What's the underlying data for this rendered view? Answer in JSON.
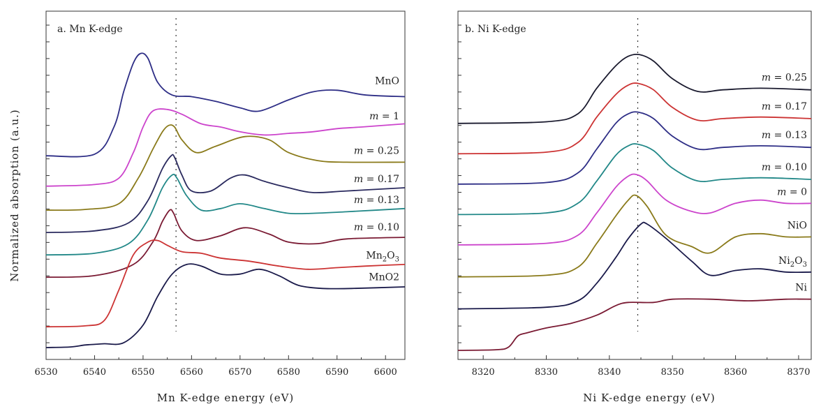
{
  "shared_ylabel": "Normalized absorption (a.u.)",
  "chart_data": [
    {
      "type": "line",
      "title": "a. Mn K-edge",
      "xlabel": "Mn K-edge energy (eV)",
      "ylabel": "Normalized absorption (a.u.)",
      "xlim": [
        6530,
        6604
      ],
      "ylim": [
        0,
        10
      ],
      "xticks": [
        6530,
        6540,
        6550,
        6560,
        6570,
        6580,
        6590,
        6600
      ],
      "xtick_labels": [
        "6530",
        "6540",
        "6550",
        "6560",
        "6570",
        "6580",
        "6590",
        "6600"
      ],
      "reference_line_x": 6556.8,
      "series": [
        {
          "name": "MnO",
          "label": "MnO",
          "color": "#2e2e86",
          "x": [
            6530,
            6540,
            6544,
            6546,
            6548,
            6549.5,
            6551,
            6553,
            6556,
            6560,
            6565,
            6570,
            6574,
            6580,
            6585,
            6590,
            6596,
            6604
          ],
          "y": [
            6.0,
            6.05,
            6.9,
            8.0,
            8.9,
            9.2,
            9.05,
            8.3,
            7.9,
            7.85,
            7.7,
            7.5,
            7.4,
            7.75,
            8.0,
            8.05,
            7.9,
            7.85
          ]
        },
        {
          "name": "m = 1",
          "label": "m = 1",
          "color": "#cc44cc",
          "x": [
            6530,
            6540,
            6545,
            6548,
            6550,
            6552,
            6555,
            6558,
            6562,
            6566,
            6570,
            6575,
            6580,
            6585,
            6590,
            6595,
            6604
          ],
          "y": [
            5.05,
            5.1,
            5.3,
            6.1,
            6.9,
            7.4,
            7.45,
            7.3,
            7.0,
            6.9,
            6.75,
            6.65,
            6.7,
            6.75,
            6.85,
            6.9,
            7.0
          ]
        },
        {
          "name": "m = 0.25",
          "label": "m = 0.25",
          "color": "#8a7a1a",
          "x": [
            6530,
            6538,
            6545,
            6549,
            6552,
            6554,
            6555.3,
            6556.5,
            6558,
            6561,
            6565,
            6571,
            6576,
            6580,
            6586,
            6592,
            6604
          ],
          "y": [
            4.3,
            4.32,
            4.5,
            5.3,
            6.2,
            6.75,
            6.95,
            6.9,
            6.5,
            6.1,
            6.3,
            6.6,
            6.5,
            6.1,
            5.85,
            5.8,
            5.8
          ]
        },
        {
          "name": "m = 0.17",
          "label": "m = 0.17",
          "color": "#2a2a5e",
          "x": [
            6530,
            6540,
            6547,
            6551,
            6554,
            6555.8,
            6556.5,
            6558,
            6560,
            6564,
            6568,
            6571,
            6575,
            6580,
            6585,
            6592,
            6604
          ],
          "y": [
            3.6,
            3.65,
            3.9,
            4.6,
            5.6,
            6.0,
            5.95,
            5.4,
            4.9,
            4.9,
            5.3,
            5.4,
            5.2,
            5.0,
            4.85,
            4.9,
            5.0
          ]
        },
        {
          "name": "m = 0.13",
          "label": "m = 0.13",
          "color": "#228888",
          "x": [
            6530,
            6540,
            6547,
            6551,
            6554,
            6556,
            6557,
            6559,
            6562,
            6566,
            6570,
            6575,
            6580,
            6585,
            6592,
            6604
          ],
          "y": [
            2.9,
            2.95,
            3.25,
            4.0,
            5.0,
            5.4,
            5.3,
            4.75,
            4.3,
            4.35,
            4.5,
            4.35,
            4.2,
            4.2,
            4.25,
            4.35
          ]
        },
        {
          "name": "m = 0.10",
          "label": "m = 0.10",
          "color": "#7a1a33",
          "x": [
            6530,
            6540,
            6548,
            6552,
            6554,
            6555.5,
            6556.3,
            6558,
            6561,
            6566,
            6571,
            6576,
            6580,
            6586,
            6592,
            6604
          ],
          "y": [
            2.2,
            2.25,
            2.6,
            3.3,
            3.95,
            4.3,
            4.2,
            3.65,
            3.35,
            3.5,
            3.75,
            3.55,
            3.3,
            3.25,
            3.4,
            3.45
          ]
        },
        {
          "name": "Mn2O3",
          "label": "Mn2O3",
          "color": "#cc3333",
          "x": [
            6530,
            6538,
            6542,
            6545,
            6548,
            6551,
            6553,
            6555,
            6558,
            6562,
            6566,
            6572,
            6578,
            6584,
            6590,
            6596,
            6604
          ],
          "y": [
            0.65,
            0.68,
            0.85,
            1.8,
            2.9,
            3.3,
            3.35,
            3.2,
            3.0,
            2.95,
            2.8,
            2.7,
            2.55,
            2.45,
            2.5,
            2.55,
            2.6
          ]
        },
        {
          "name": "MnO2",
          "label": "MnO2",
          "color": "#1a1a4a",
          "x": [
            6530,
            6535,
            6538,
            6540,
            6542,
            6546,
            6550,
            6553,
            6556,
            6559,
            6562,
            6566,
            6570,
            6574,
            6578,
            6582,
            6587,
            6593,
            6604
          ],
          "y": [
            0.0,
            0.02,
            0.08,
            0.1,
            0.12,
            0.15,
            0.7,
            1.6,
            2.3,
            2.6,
            2.55,
            2.3,
            2.3,
            2.45,
            2.25,
            1.95,
            1.85,
            1.85,
            1.9
          ]
        }
      ]
    },
    {
      "type": "line",
      "title": "b. Ni K-edge",
      "xlabel": "Ni K-edge energy (eV)",
      "ylabel": "Normalized absorption (a.u.)",
      "xlim": [
        8316,
        8372
      ],
      "ylim": [
        0,
        10
      ],
      "xticks": [
        8320,
        8330,
        8340,
        8350,
        8360,
        8370
      ],
      "xtick_labels": [
        "8320",
        "8330",
        "8340",
        "8350",
        "8360",
        "8370"
      ],
      "reference_line_x": 8344.5,
      "series": [
        {
          "name": "m = 0.25",
          "label": "m = 0.25",
          "color": "#1a1a2e",
          "x": [
            8316,
            8330,
            8335,
            8338,
            8341,
            8343,
            8344.8,
            8347,
            8350,
            8354,
            8358,
            8364,
            8372
          ],
          "y": [
            7.1,
            7.15,
            7.4,
            8.2,
            8.9,
            9.2,
            9.25,
            9.05,
            8.5,
            8.1,
            8.15,
            8.2,
            8.15
          ]
        },
        {
          "name": "m = 0.17",
          "label": "m = 0.17",
          "color": "#cc3333",
          "x": [
            8316,
            8330,
            8335,
            8338,
            8341,
            8343,
            8344.6,
            8347,
            8350,
            8354,
            8358,
            8364,
            8372
          ],
          "y": [
            6.15,
            6.2,
            6.5,
            7.3,
            8.0,
            8.3,
            8.35,
            8.15,
            7.6,
            7.2,
            7.25,
            7.3,
            7.25
          ]
        },
        {
          "name": "m = 0.13",
          "label": "m = 0.13",
          "color": "#2e2e86",
          "x": [
            8316,
            8330,
            8335,
            8338,
            8341,
            8343,
            8344.6,
            8347,
            8350,
            8354,
            8358,
            8364,
            8372
          ],
          "y": [
            5.2,
            5.25,
            5.55,
            6.3,
            7.1,
            7.4,
            7.45,
            7.25,
            6.7,
            6.3,
            6.35,
            6.4,
            6.35
          ]
        },
        {
          "name": "m = 0.10",
          "label": "m = 0.10",
          "color": "#228888",
          "x": [
            8316,
            8330,
            8335,
            8338,
            8341,
            8343,
            8344.5,
            8347,
            8350,
            8354,
            8358,
            8364,
            8372
          ],
          "y": [
            4.25,
            4.3,
            4.6,
            5.3,
            6.1,
            6.4,
            6.45,
            6.25,
            5.7,
            5.3,
            5.35,
            5.4,
            5.35
          ]
        },
        {
          "name": "m = 0",
          "label": "m = 0",
          "color": "#cc44cc",
          "x": [
            8316,
            8330,
            8335,
            8338,
            8341,
            8343,
            8344.3,
            8346,
            8349,
            8353,
            8356,
            8360,
            8364,
            8368,
            8372
          ],
          "y": [
            3.3,
            3.35,
            3.6,
            4.3,
            5.1,
            5.45,
            5.5,
            5.3,
            4.7,
            4.35,
            4.3,
            4.6,
            4.7,
            4.6,
            4.6
          ]
        },
        {
          "name": "NiO",
          "label": "NiO",
          "color": "#8a7a1a",
          "x": [
            8316,
            8330,
            8335,
            8338,
            8341,
            8343,
            8344.2,
            8346,
            8349,
            8353,
            8356,
            8360,
            8364,
            8368,
            8372
          ],
          "y": [
            2.3,
            2.35,
            2.6,
            3.35,
            4.2,
            4.7,
            4.85,
            4.5,
            3.6,
            3.25,
            3.05,
            3.55,
            3.65,
            3.55,
            3.55
          ]
        },
        {
          "name": "Ni2O3",
          "label": "Ni2O3",
          "color": "#1a1a4a",
          "x": [
            8316,
            8330,
            8335,
            8338,
            8341,
            8343,
            8345,
            8346,
            8349,
            8353,
            8356,
            8360,
            8364,
            8368,
            8372
          ],
          "y": [
            1.3,
            1.35,
            1.55,
            2.1,
            2.9,
            3.5,
            3.95,
            3.95,
            3.5,
            2.8,
            2.35,
            2.5,
            2.55,
            2.45,
            2.45
          ]
        },
        {
          "name": "Ni",
          "label": "Ni",
          "color": "#7a1a33",
          "x": [
            8316,
            8322,
            8324,
            8325.5,
            8327,
            8330,
            8334,
            8338,
            8341,
            8343,
            8347,
            8350,
            8356,
            8362,
            8368,
            8372
          ],
          "y": [
            0.0,
            0.02,
            0.1,
            0.45,
            0.55,
            0.7,
            0.85,
            1.1,
            1.4,
            1.5,
            1.5,
            1.6,
            1.6,
            1.55,
            1.6,
            1.6
          ]
        }
      ]
    }
  ]
}
